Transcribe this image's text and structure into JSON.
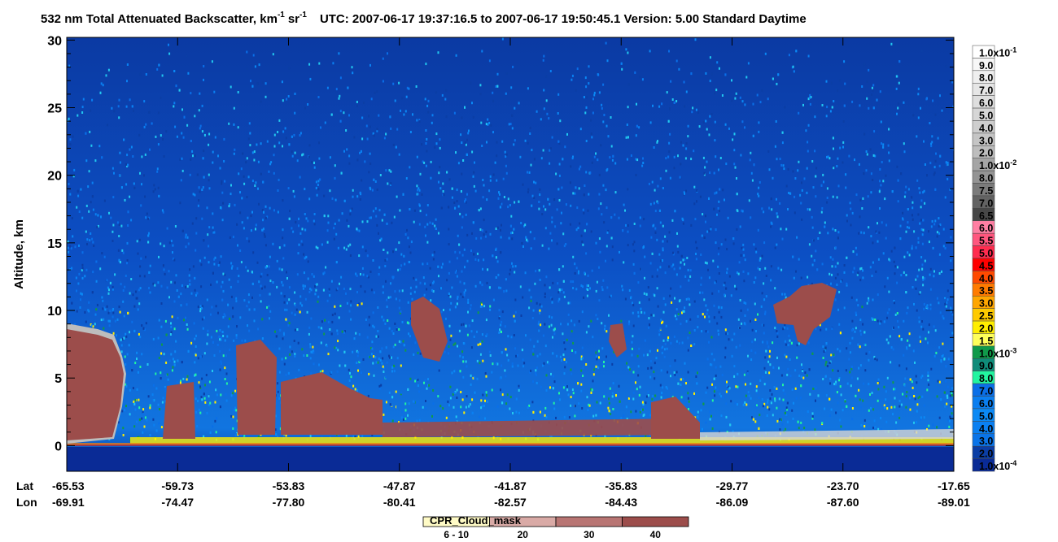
{
  "title": {
    "part1": "532 nm Total Attenuated Backscatter, km",
    "exp1": "-1",
    "part2": "sr",
    "exp2": "-1",
    "part3": "UTC:  2007-06-17 19:37:16.5  to  2007-06-17 19:50:45.1    Version: 5.00  Standard  Daytime"
  },
  "chart_data": {
    "type": "heatmap",
    "ylabel": "Altitude, km",
    "ylim": [
      -1.9,
      30.2
    ],
    "yticks": [
      0,
      5,
      10,
      15,
      20,
      25,
      30
    ],
    "x_rows": [
      {
        "name": "Lat",
        "labels": [
          "-65.53",
          "-59.73",
          "-53.83",
          "-47.87",
          "-41.87",
          "-35.83",
          "-29.77",
          "-23.70",
          "-17.65"
        ]
      },
      {
        "name": "Lon",
        "labels": [
          "-69.91",
          "-74.47",
          "-77.80",
          "-80.41",
          "-82.57",
          "-84.43",
          "-86.09",
          "-87.60",
          "-89.01"
        ]
      }
    ],
    "colorbar": [
      {
        "text": "1.0x10",
        "exp": "-1",
        "color": "#ffffff"
      },
      {
        "text": "9.0",
        "color": "#f7f7f7"
      },
      {
        "text": "8.0",
        "color": "#efefef"
      },
      {
        "text": "7.0",
        "color": "#e6e6e6"
      },
      {
        "text": "6.0",
        "color": "#dedede"
      },
      {
        "text": "5.0",
        "color": "#d6d6d6"
      },
      {
        "text": "4.0",
        "color": "#cecece"
      },
      {
        "text": "3.0",
        "color": "#c5c5c5"
      },
      {
        "text": "2.0",
        "color": "#bdbdbd"
      },
      {
        "text": "1.0x10",
        "exp": "-2",
        "color": "#a5a5a5"
      },
      {
        "text": "8.0",
        "color": "#949494"
      },
      {
        "text": "7.5",
        "color": "#7b7b7b"
      },
      {
        "text": "7.0",
        "color": "#636363"
      },
      {
        "text": "6.5",
        "color": "#474747"
      },
      {
        "text": "6.0",
        "color": "#ff7fa3"
      },
      {
        "text": "5.5",
        "color": "#ff577f"
      },
      {
        "text": "5.0",
        "color": "#ff2c4f"
      },
      {
        "text": "4.5",
        "color": "#ff0000"
      },
      {
        "text": "4.0",
        "color": "#ff4a00"
      },
      {
        "text": "3.5",
        "color": "#ff7b00"
      },
      {
        "text": "3.0",
        "color": "#ffa600"
      },
      {
        "text": "2.5",
        "color": "#ffca00"
      },
      {
        "text": "2.0",
        "color": "#ffee00"
      },
      {
        "text": "1.5",
        "color": "#ffff5a"
      },
      {
        "text": "1.0x10",
        "exp": "-3",
        "color": "#109a4a"
      },
      {
        "text": "9.0",
        "color": "#108c7a"
      },
      {
        "text": "8.0",
        "color": "#22f5a0"
      },
      {
        "text": "7.0",
        "color": "#0a6fe8"
      },
      {
        "text": "6.0",
        "color": "#0a7ef0"
      },
      {
        "text": "5.0",
        "color": "#0b89f5"
      },
      {
        "text": "4.0",
        "color": "#0a80f2"
      },
      {
        "text": "3.0",
        "color": "#0a74e8"
      },
      {
        "text": "2.0",
        "color": "#0b3ea5"
      },
      {
        "text": "1.0x10",
        "exp": "-4",
        "color": "#0a2b96"
      }
    ],
    "cloud_mask": {
      "title": "CPR_Cloud_mask",
      "entries": [
        {
          "label": "6 - 10",
          "color": "#fffbc6"
        },
        {
          "label": "20",
          "color": "#d9aaa6"
        },
        {
          "label": "30",
          "color": "#b87573"
        },
        {
          "label": "40",
          "color": "#9c4d4b"
        }
      ]
    }
  }
}
